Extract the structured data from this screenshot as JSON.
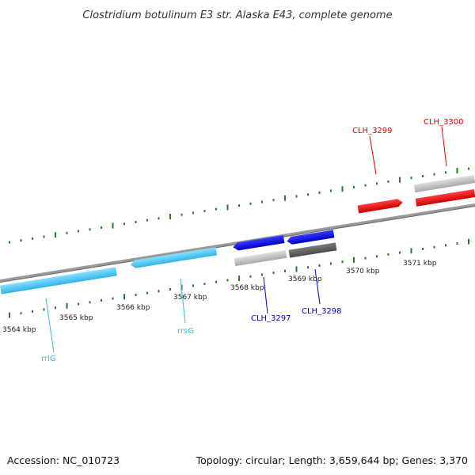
{
  "header": {
    "title": "Clostridium botulinum E3 str. Alaska E43, complete genome"
  },
  "footer": {
    "accession": "Accession: NC_010723",
    "summary": "Topology: circular; Length: 3,659,644 bp; Genes: 3,370"
  },
  "scale": {
    "ticks": [
      {
        "label": "3564 kbp"
      },
      {
        "label": "3565 kbp"
      },
      {
        "label": "3566 kbp"
      },
      {
        "label": "3567 kbp"
      },
      {
        "label": "3568 kbp"
      },
      {
        "label": "3569 kbp"
      },
      {
        "label": "3570 kbp"
      },
      {
        "label": "3571 kbp"
      }
    ]
  },
  "genes": [
    {
      "label": "rrlG",
      "color": "#33bbe0"
    },
    {
      "label": "rrsG",
      "color": "#33bbe0"
    },
    {
      "label": "CLH_3297",
      "color": "#0000cc"
    },
    {
      "label": "CLH_3298",
      "color": "#0000cc"
    },
    {
      "label": "CLH_3299",
      "color": "#dd0000"
    },
    {
      "label": "CLH_3300",
      "color": "#dd0000"
    }
  ],
  "colors": {
    "backbone": "#888888",
    "tick": "#2a7a2a",
    "rRNA": "#44ccff",
    "minus_cds": "#1a1ae6",
    "plus_cds": "#ff1a1a",
    "grey_feature": "#c8c8c8",
    "dark_feature": "#666666"
  }
}
